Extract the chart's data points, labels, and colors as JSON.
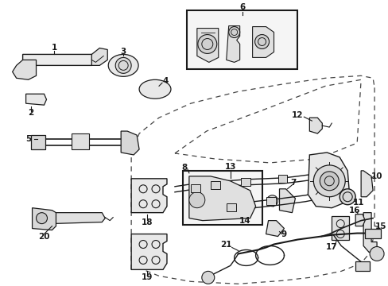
{
  "bg_color": "#ffffff",
  "line_color": "#1a1a1a",
  "dash_color": "#444444",
  "label_fontsize": 7.5,
  "figsize": [
    4.89,
    3.6
  ],
  "dpi": 100
}
